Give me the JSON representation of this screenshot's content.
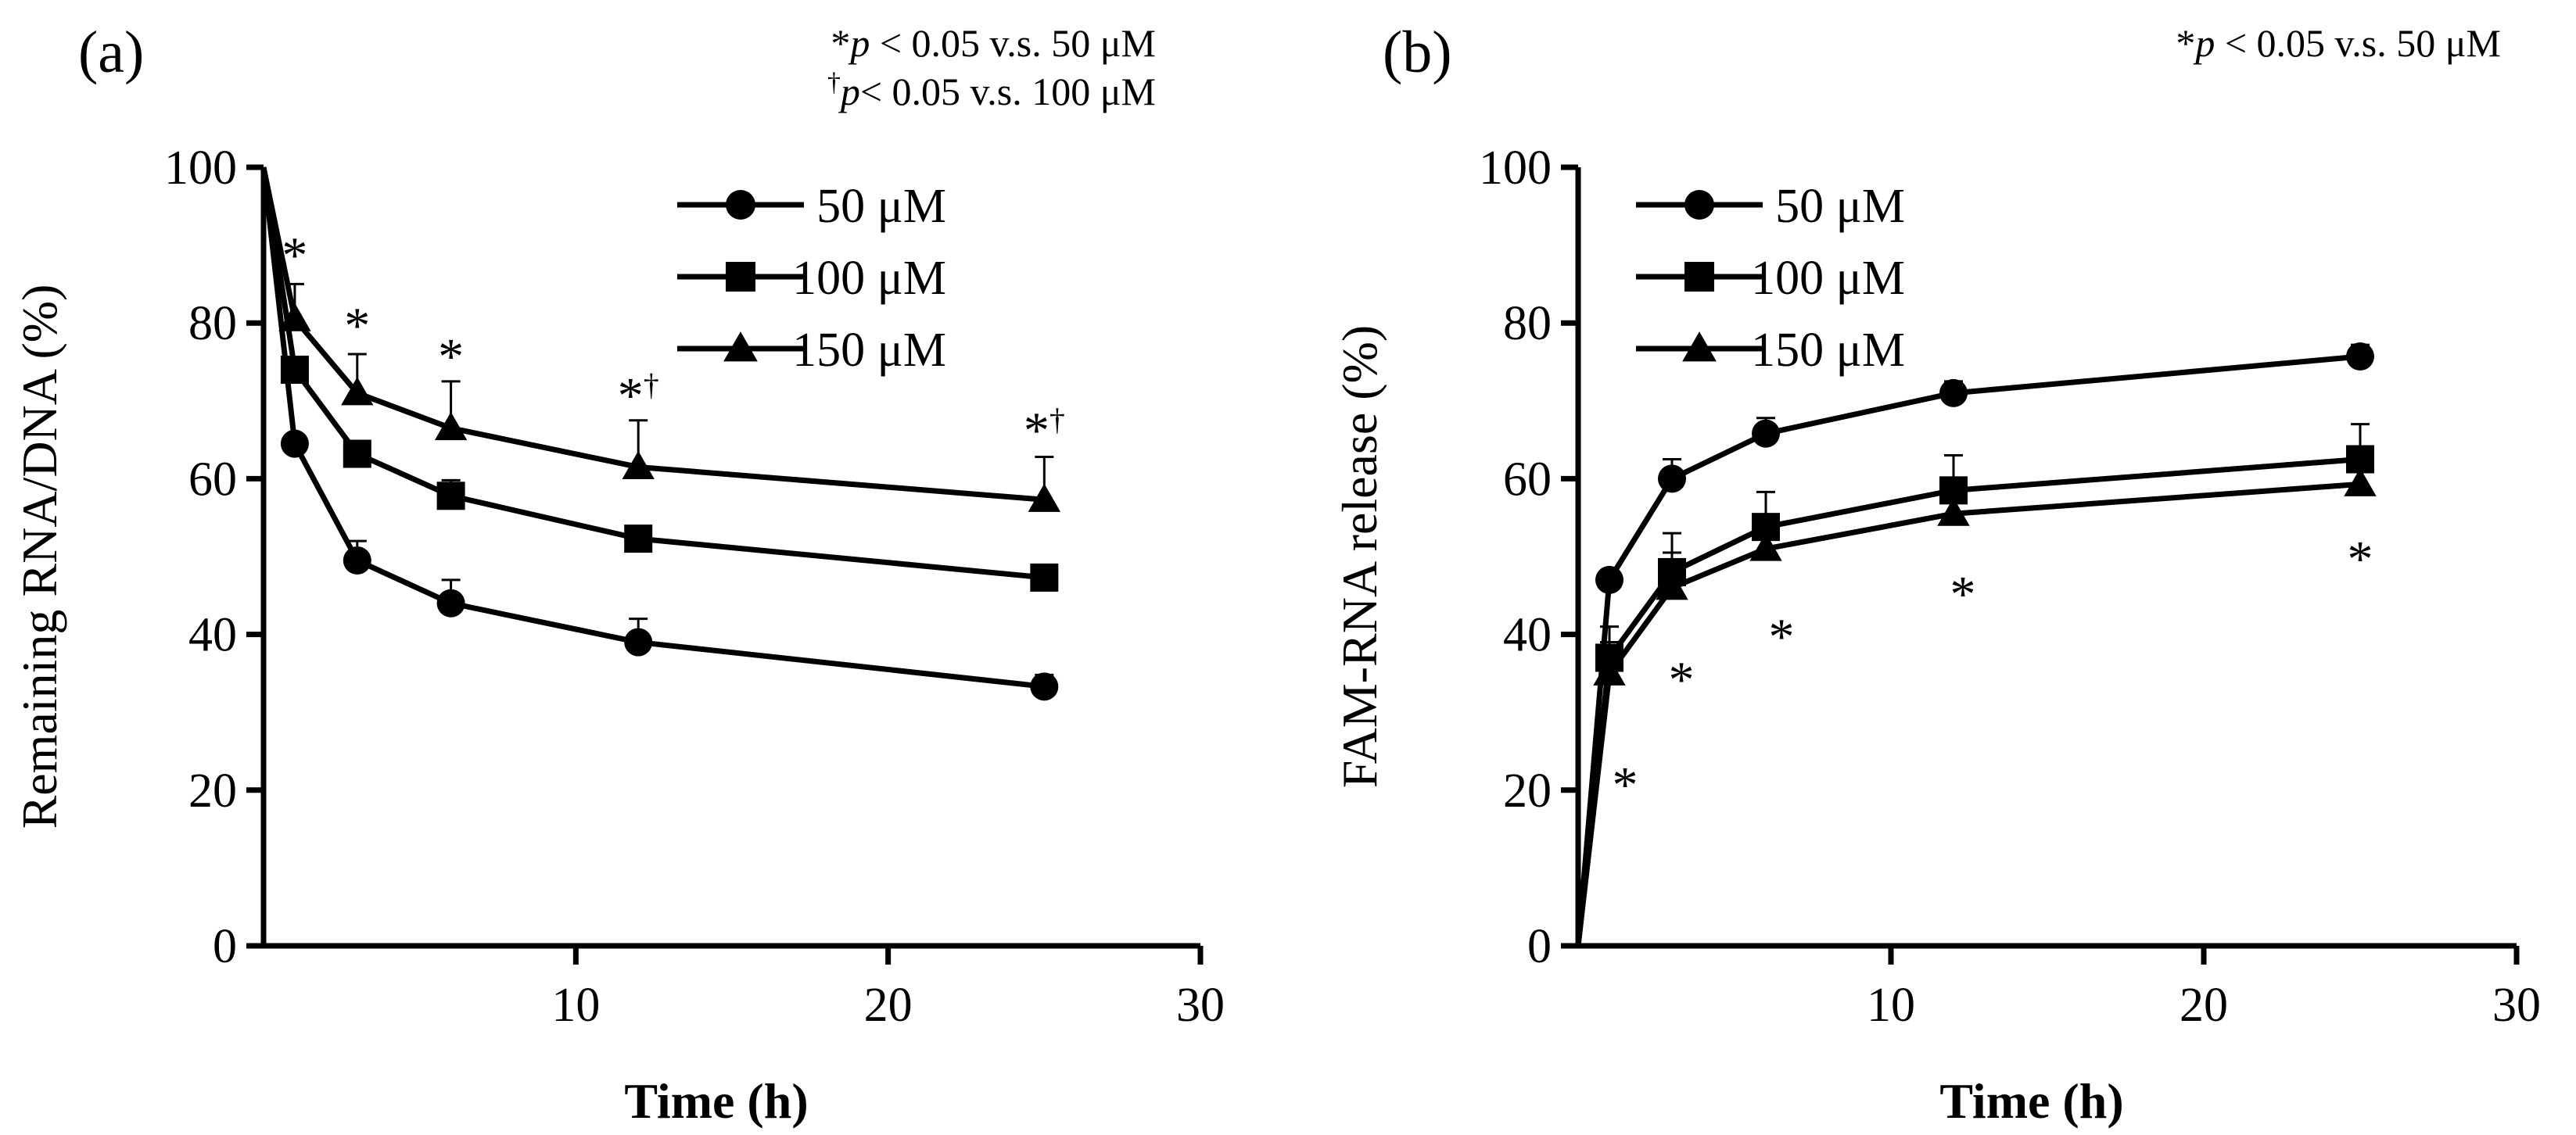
{
  "chart_data": [
    {
      "type": "line",
      "panel_label": "(a)",
      "xlabel": "Time (h)",
      "ylabel": "Remaining RNA/DNA (%)",
      "xlim": [
        0,
        30
      ],
      "ylim": [
        0,
        100
      ],
      "xticks": [
        10,
        20,
        30
      ],
      "yticks": [
        0,
        20,
        40,
        60,
        80,
        100
      ],
      "notes": [
        {
          "symbol": "*",
          "p": "p",
          "text": " < 0.05 v.s. 50 μM"
        },
        {
          "symbol": "†",
          "p": "p",
          "text": "< 0.05 v.s. 100 μM"
        }
      ],
      "series": [
        {
          "name": "50 μM",
          "marker": "circle",
          "x": [
            0,
            1,
            3,
            6,
            12,
            25
          ],
          "y": [
            100,
            64.5,
            49.5,
            44,
            39,
            33.3
          ],
          "err": [
            0,
            0,
            2.5,
            3,
            3,
            1.5
          ]
        },
        {
          "name": "100 μM",
          "marker": "square",
          "x": [
            0,
            1,
            3,
            6,
            12,
            25
          ],
          "y": [
            100,
            74,
            63.2,
            57.8,
            52.3,
            47.3
          ],
          "err": [
            0,
            0,
            0,
            2,
            0,
            0
          ]
        },
        {
          "name": "150 μM",
          "marker": "triangle",
          "x": [
            0,
            1,
            3,
            6,
            12,
            25
          ],
          "y": [
            100,
            80.5,
            71,
            66.5,
            61.5,
            57.3
          ],
          "err": [
            0,
            4.5,
            5,
            6,
            6,
            5.5
          ]
        }
      ],
      "annotations": [
        {
          "x": 1,
          "y": 90.5,
          "text": "*"
        },
        {
          "x": 3,
          "y": 81.5,
          "text": "*"
        },
        {
          "x": 6,
          "y": 77.5,
          "text": "*"
        },
        {
          "x": 12,
          "y": 72.5,
          "text": "*†"
        },
        {
          "x": 25,
          "y": 68,
          "text": "*†"
        }
      ]
    },
    {
      "type": "line",
      "panel_label": "(b)",
      "xlabel": "Time (h)",
      "ylabel": "FAM-RNA release (%)",
      "xlim": [
        0,
        30
      ],
      "ylim": [
        0,
        100
      ],
      "xticks": [
        10,
        20,
        30
      ],
      "yticks": [
        0,
        20,
        40,
        60,
        80,
        100
      ],
      "notes": [
        {
          "symbol": "*",
          "p": "p",
          "text": " < 0.05 v.s. 50 μM"
        }
      ],
      "series": [
        {
          "name": "50 μM",
          "marker": "circle",
          "x": [
            0,
            1,
            3,
            6,
            12,
            25
          ],
          "y": [
            0,
            47,
            60,
            65.8,
            71,
            75.7
          ],
          "err": [
            0,
            0,
            2.5,
            2,
            1.5,
            1.5
          ]
        },
        {
          "name": "100 μM",
          "marker": "square",
          "x": [
            0,
            1,
            3,
            6,
            12,
            25
          ],
          "y": [
            0,
            37,
            48,
            53.8,
            58.5,
            62.5
          ],
          "err": [
            0,
            4,
            5,
            4.5,
            4.5,
            4.5
          ]
        },
        {
          "name": "150 μM",
          "marker": "triangle",
          "x": [
            0,
            1,
            3,
            6,
            12,
            25
          ],
          "y": [
            0,
            35,
            46,
            51,
            55.5,
            59.3
          ],
          "err": [
            0,
            4,
            4.5,
            4,
            4,
            4
          ]
        }
      ],
      "annotations": [
        {
          "x": 1.5,
          "y": 22.5,
          "text": "*"
        },
        {
          "x": 3.3,
          "y": 36,
          "text": "*"
        },
        {
          "x": 6.5,
          "y": 41.5,
          "text": "*"
        },
        {
          "x": 12.3,
          "y": 47,
          "text": "*"
        },
        {
          "x": 25,
          "y": 51.5,
          "text": "*"
        }
      ]
    }
  ]
}
